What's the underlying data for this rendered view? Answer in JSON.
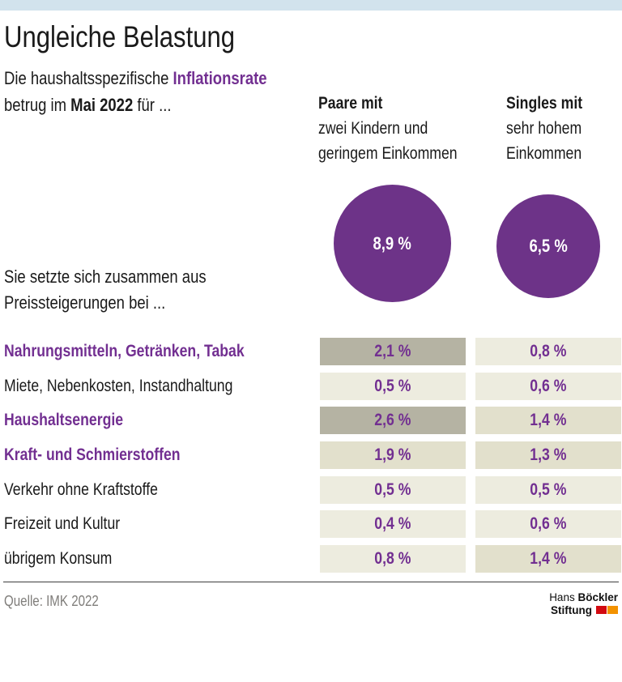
{
  "colors": {
    "topbar_blue": "#d2e3ed",
    "accent_purple": "#6d3388",
    "text_purple": "#722f91",
    "text_black": "#1a1a1a",
    "cell_light": "#edecdf",
    "cell_medium": "#e2e0cc",
    "cell_dark": "#b5b3a3",
    "source_gray": "#7f7d7a",
    "logo_red": "#d20a11",
    "logo_orange": "#f39200"
  },
  "header": {
    "title": "Ungleiche Belastung",
    "intro_prefix": "Die haushaltsspezifische ",
    "intro_highlight": "Inflationsrate",
    "intro2_prefix": "betrug im ",
    "intro2_bold": "Mai 2022",
    "intro2_suffix": " für ..."
  },
  "columns": [
    {
      "heading_bold": "Paare mit",
      "heading_rest": [
        "zwei Kindern und",
        "geringem Einkommen"
      ],
      "total": "8,9 %"
    },
    {
      "heading_bold": "Singles mit",
      "heading_rest": [
        "sehr hohem",
        "Einkommen"
      ],
      "total": "6,5 %"
    }
  ],
  "intro": {
    "line1": "Sie setzte sich zusammen aus",
    "line2": "Preissteigerungen bei ..."
  },
  "rows": [
    {
      "label": "Nahrungsmitteln, Getränken, Tabak",
      "highlight": true,
      "values": [
        "2,1 %",
        "0,8 %"
      ],
      "shades": [
        "dark",
        "light"
      ]
    },
    {
      "label": "Miete, Nebenkosten, Instandhaltung",
      "highlight": false,
      "values": [
        "0,5 %",
        "0,6 %"
      ],
      "shades": [
        "light",
        "light"
      ]
    },
    {
      "label": "Haushaltsenergie",
      "highlight": true,
      "values": [
        "2,6 %",
        "1,4 %"
      ],
      "shades": [
        "dark",
        "medium"
      ]
    },
    {
      "label": "Kraft- und Schmierstoffen",
      "highlight": true,
      "values": [
        "1,9 %",
        "1,3 %"
      ],
      "shades": [
        "medium",
        "medium"
      ]
    },
    {
      "label": "Verkehr ohne Kraftstoffe",
      "highlight": false,
      "values": [
        "0,5 %",
        "0,5 %"
      ],
      "shades": [
        "light",
        "light"
      ]
    },
    {
      "label": "Freizeit und Kultur",
      "highlight": false,
      "values": [
        "0,4 %",
        "0,6 %"
      ],
      "shades": [
        "light",
        "light"
      ]
    },
    {
      "label": "übrigem Konsum",
      "highlight": false,
      "values": [
        "0,8 %",
        "1,4 %"
      ],
      "shades": [
        "light",
        "medium"
      ]
    }
  ],
  "footer": {
    "source": "Quelle: IMK 2022",
    "logo": {
      "name_regular": "Hans ",
      "name_bold": "Böckler",
      "line2_bold": "Stiftung"
    }
  },
  "chart_data": {
    "type": "table",
    "title": "Ungleiche Belastung",
    "subtitle": "Die haushaltsspezifische Inflationsrate betrug im Mai 2022 für ...",
    "unit": "%",
    "groups": [
      "Paare mit zwei Kindern und geringem Einkommen",
      "Singles mit sehr hohem Einkommen"
    ],
    "totals_percent": [
      8.9,
      6.5
    ],
    "categories": [
      "Nahrungsmitteln, Getränken, Tabak",
      "Miete, Nebenkosten, Instandhaltung",
      "Haushaltsenergie",
      "Kraft- und Schmierstoffen",
      "Verkehr ohne Kraftstoffe",
      "Freizeit und Kultur",
      "übrigem Konsum"
    ],
    "series": [
      {
        "name": "Paare mit zwei Kindern und geringem Einkommen",
        "values": [
          2.1,
          0.5,
          2.6,
          1.9,
          0.5,
          0.4,
          0.8
        ]
      },
      {
        "name": "Singles mit sehr hohem Einkommen",
        "values": [
          0.8,
          0.6,
          1.4,
          1.3,
          0.5,
          0.6,
          1.4
        ]
      }
    ],
    "highlighted_categories": [
      "Nahrungsmitteln, Getränken, Tabak",
      "Haushaltsenergie",
      "Kraft- und Schmierstoffen"
    ],
    "source": "Quelle: IMK 2022"
  }
}
